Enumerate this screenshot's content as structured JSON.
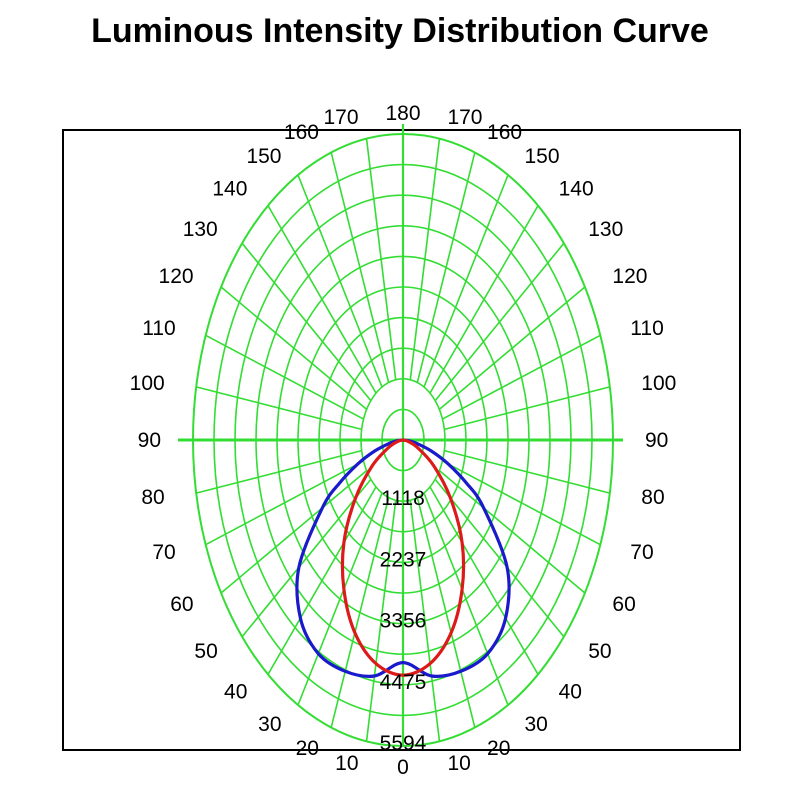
{
  "title": "Luminous Intensity Distribution Curve",
  "colors": {
    "grid": "#33dd33",
    "frame": "#000000",
    "series_blue": "#1a1acc",
    "series_red": "#dd1a1a"
  },
  "chart_data": {
    "type": "polar",
    "title": "Luminous Intensity Distribution Curve",
    "angle_labels_left": [
      "170",
      "160",
      "150",
      "140",
      "130",
      "120",
      "110",
      "100",
      "90",
      "80",
      "70",
      "60",
      "50",
      "40",
      "30",
      "20",
      "10"
    ],
    "angle_labels_right": [
      "170",
      "160",
      "150",
      "140",
      "130",
      "120",
      "110",
      "100",
      "90",
      "80",
      "70",
      "60",
      "50",
      "40",
      "30",
      "20",
      "10"
    ],
    "angle_label_top": "180",
    "angle_label_bottom": "0",
    "angle_values": [
      170,
      160,
      150,
      140,
      130,
      120,
      110,
      100,
      90,
      80,
      70,
      60,
      50,
      40,
      30,
      20,
      10
    ],
    "ring_labels": [
      "1118",
      "2237",
      "3356",
      "4475",
      "5594"
    ],
    "ring_values": [
      1118,
      2237,
      3356,
      4475,
      5594
    ],
    "r_max": 5594,
    "grid": true,
    "series": [
      {
        "color": "blue",
        "angles": [
          0,
          10,
          20,
          30,
          40,
          50,
          60,
          65,
          70,
          75,
          80,
          85,
          90
        ],
        "values": [
          4070,
          4380,
          4500,
          4510,
          4250,
          3620,
          2480,
          1870,
          1280,
          780,
          380,
          160,
          0
        ]
      },
      {
        "color": "red",
        "angles": [
          0,
          10,
          20,
          30,
          40,
          50,
          60,
          70,
          80,
          90
        ],
        "values": [
          4300,
          4150,
          3750,
          3150,
          2450,
          1650,
          950,
          420,
          130,
          0
        ]
      }
    ]
  }
}
